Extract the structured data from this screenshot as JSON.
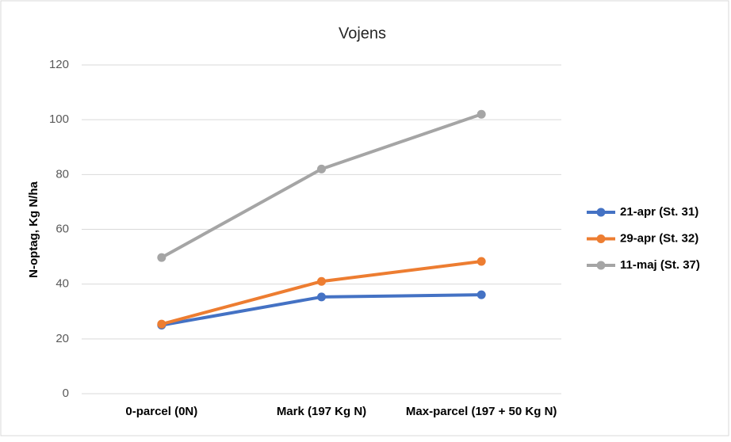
{
  "chart_data": {
    "type": "line",
    "title": "Vojens",
    "y_label": "N-optag, Kg N/ha",
    "categories": [
      "0-parcel (0N)",
      "Mark (197 Kg N)",
      "Max-parcel (197 + 50 Kg N)"
    ],
    "series": [
      {
        "name": "21-apr (St. 31)",
        "color": "#4472c4",
        "values": [
          25,
          35.3,
          36.1
        ]
      },
      {
        "name": "29-apr (St. 32)",
        "color": "#ed7d31",
        "values": [
          25.4,
          41,
          48.3
        ]
      },
      {
        "name": "11-maj (St. 37)",
        "color": "#a5a5a5",
        "values": [
          49.7,
          82,
          102
        ]
      }
    ],
    "ylim": [
      0,
      120
    ],
    "yticks": [
      0,
      20,
      40,
      60,
      80,
      100,
      120
    ],
    "grid": true,
    "legend": "right"
  }
}
